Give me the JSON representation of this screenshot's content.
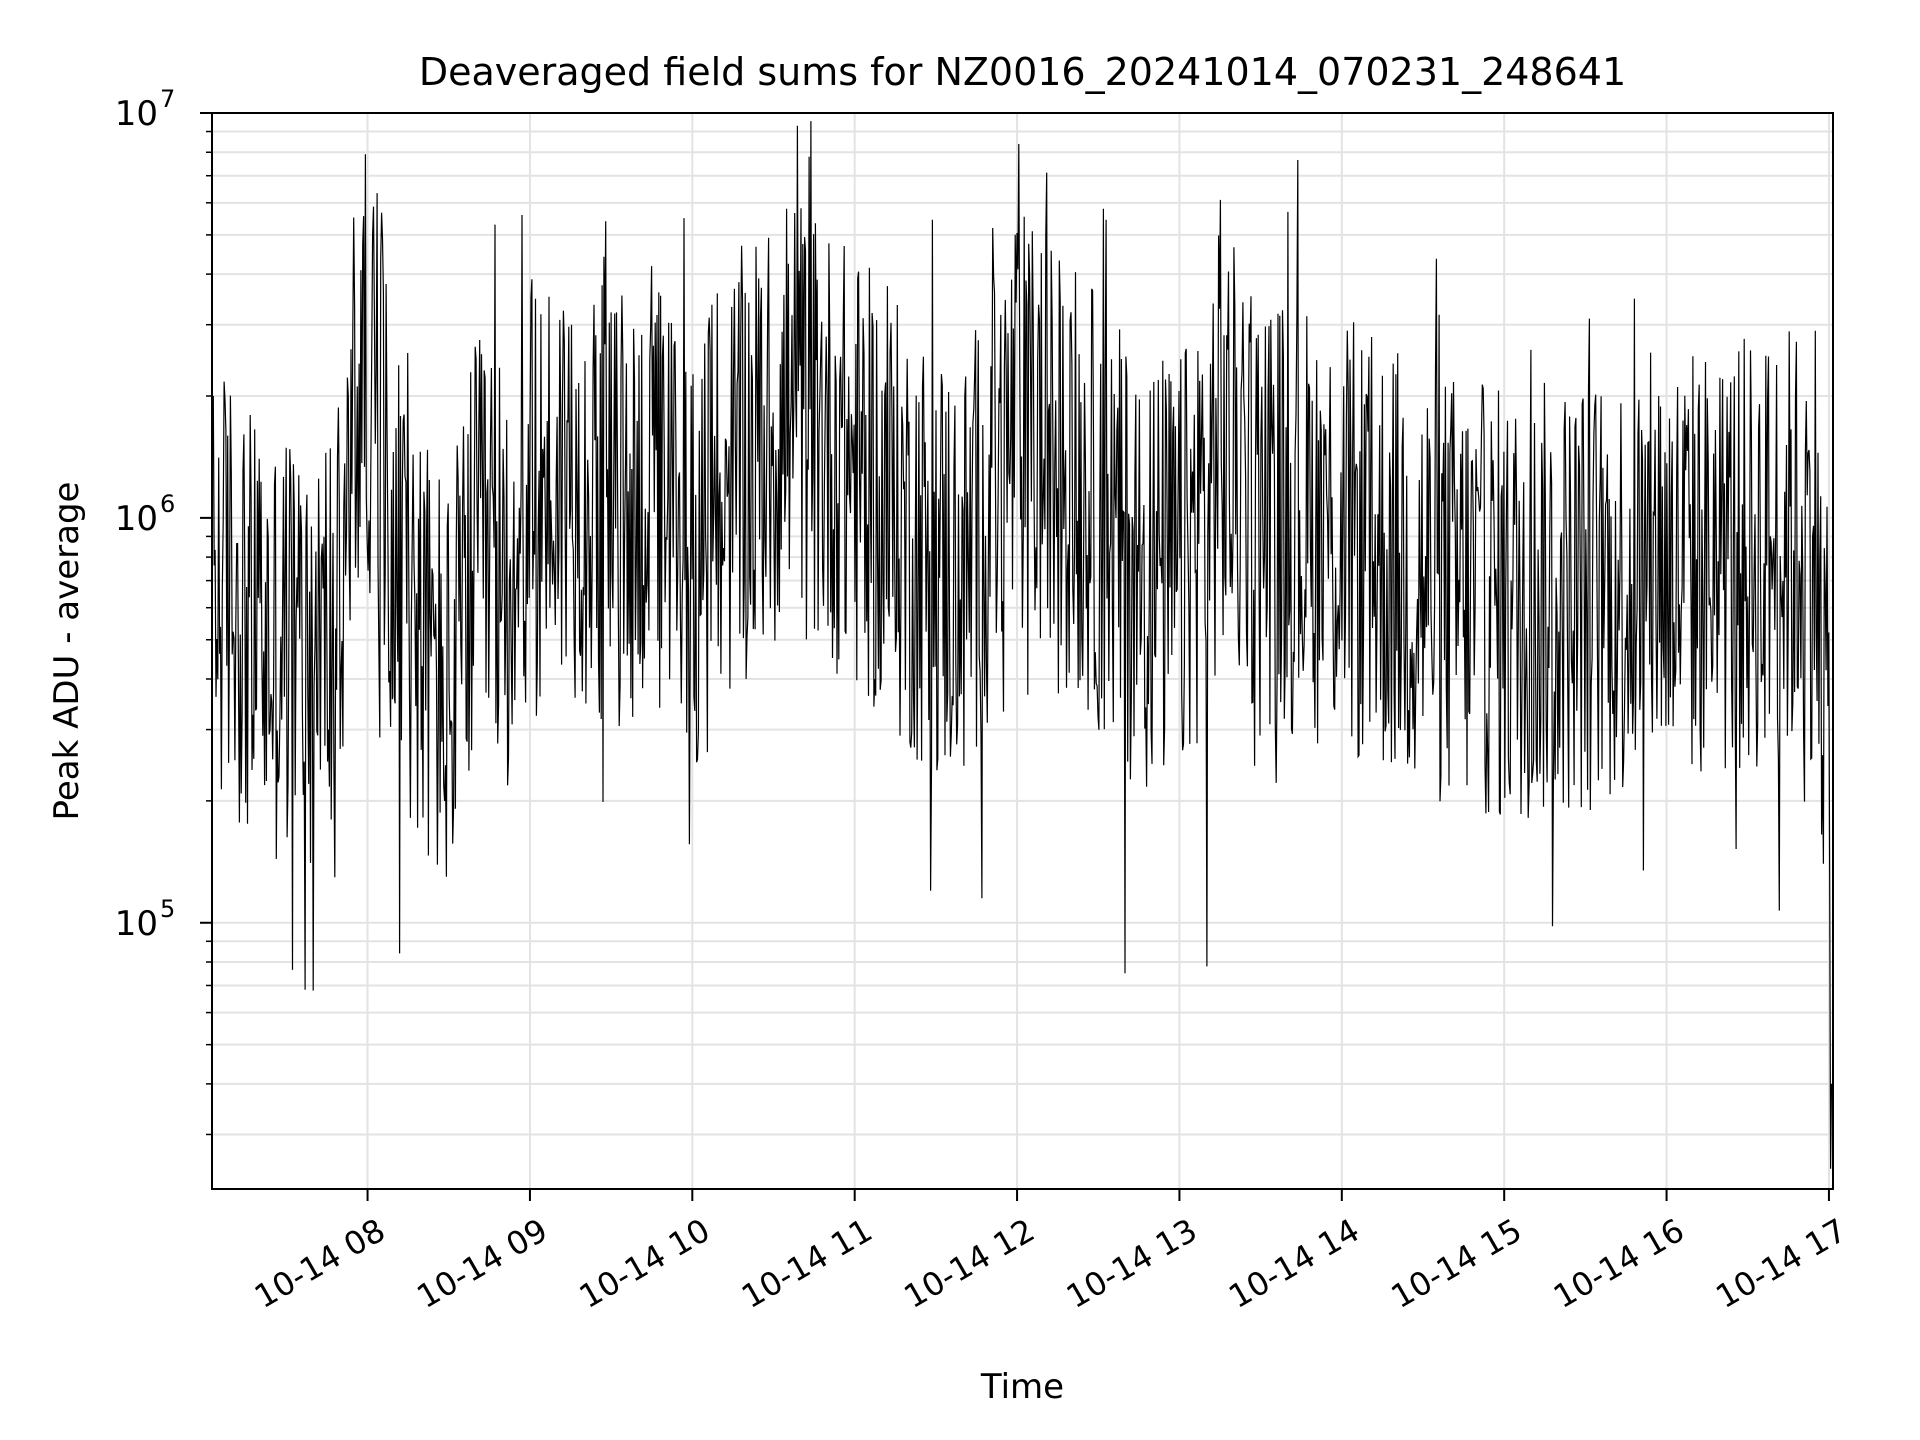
{
  "chart_data": {
    "type": "line",
    "title": "Deaveraged field sums for NZ0016_20241014_070231_248641",
    "xlabel": "Time",
    "ylabel": "Peak ADU - average",
    "xlim": [
      "2024-10-14T07:02:31",
      "2024-10-14T17:01:30"
    ],
    "ylim": [
      22000,
      10000000
    ],
    "yscale": "log",
    "grid": true,
    "x_ticks": [
      {
        "t": "2024-10-14T08:00",
        "label": "10-14 08"
      },
      {
        "t": "2024-10-14T09:00",
        "label": "10-14 09"
      },
      {
        "t": "2024-10-14T10:00",
        "label": "10-14 10"
      },
      {
        "t": "2024-10-14T11:00",
        "label": "10-14 11"
      },
      {
        "t": "2024-10-14T12:00",
        "label": "10-14 12"
      },
      {
        "t": "2024-10-14T13:00",
        "label": "10-14 13"
      },
      {
        "t": "2024-10-14T14:00",
        "label": "10-14 14"
      },
      {
        "t": "2024-10-14T15:00",
        "label": "10-14 15"
      },
      {
        "t": "2024-10-14T16:00",
        "label": "10-14 16"
      },
      {
        "t": "2024-10-14T17:00",
        "label": "10-14 17"
      }
    ],
    "y_ticks": [
      {
        "value": 100000,
        "base": "10",
        "exp": "5"
      },
      {
        "value": 1000000,
        "base": "10",
        "exp": "6"
      },
      {
        "value": 10000000,
        "base": "10",
        "exp": "7"
      }
    ],
    "series_color": "#000000",
    "series": [
      {
        "x": [
          "2024-10-14T07:03",
          "2024-10-14T07:10",
          "2024-10-14T07:20",
          "2024-10-14T07:30",
          "2024-10-14T07:40",
          "2024-10-14T07:50",
          "2024-10-14T07:55",
          "2024-10-14T08:00",
          "2024-10-14T08:10",
          "2024-10-14T08:20",
          "2024-10-14T08:30",
          "2024-10-14T08:40",
          "2024-10-14T08:50",
          "2024-10-14T09:00",
          "2024-10-14T09:15",
          "2024-10-14T09:30",
          "2024-10-14T09:45",
          "2024-10-14T10:00",
          "2024-10-14T10:20",
          "2024-10-14T10:40",
          "2024-10-14T11:00",
          "2024-10-14T11:20",
          "2024-10-14T11:40",
          "2024-10-14T12:00",
          "2024-10-14T12:20",
          "2024-10-14T12:40",
          "2024-10-14T13:00",
          "2024-10-14T13:15",
          "2024-10-14T13:30",
          "2024-10-14T14:00",
          "2024-10-14T14:30",
          "2024-10-14T15:00",
          "2024-10-14T15:30",
          "2024-10-14T16:00",
          "2024-10-14T16:30",
          "2024-10-14T16:55",
          "2024-10-14T17:00",
          "2024-10-14T17:01"
        ],
        "y": [
          650000,
          700000,
          450000,
          500000,
          480000,
          550000,
          1800000,
          2500000,
          900000,
          500000,
          350000,
          800000,
          700000,
          1100000,
          1300000,
          1000000,
          1200000,
          800000,
          1400000,
          1800000,
          1300000,
          900000,
          700000,
          1700000,
          1300000,
          800000,
          700000,
          1500000,
          1100000,
          900000,
          700000,
          600000,
          650000,
          750000,
          800000,
          900000,
          250000,
          40000
        ],
        "peaks_high": [
          {
            "x": "2024-10-14T07:20",
            "y": 1400000
          },
          {
            "x": "2024-10-14T08:02",
            "y": 5000000
          },
          {
            "x": "2024-10-14T08:47",
            "y": 5300000
          },
          {
            "x": "2024-10-14T08:57",
            "y": 5600000
          },
          {
            "x": "2024-10-14T09:28",
            "y": 5400000
          },
          {
            "x": "2024-10-14T09:57",
            "y": 5500000
          },
          {
            "x": "2024-10-14T10:35",
            "y": 5800000
          },
          {
            "x": "2024-10-14T10:43",
            "y": 7800000
          },
          {
            "x": "2024-10-14T11:51",
            "y": 5200000
          },
          {
            "x": "2024-10-14T12:32",
            "y": 5800000
          },
          {
            "x": "2024-10-14T13:15",
            "y": 6100000
          },
          {
            "x": "2024-10-14T14:10",
            "y": 2500000
          },
          {
            "x": "2024-10-14T15:10",
            "y": 2600000
          },
          {
            "x": "2024-10-14T15:57",
            "y": 2000000
          },
          {
            "x": "2024-10-14T16:55",
            "y": 2900000
          }
        ],
        "peaks_low": [
          {
            "x": "2024-10-14T07:40",
            "y": 68000
          },
          {
            "x": "2024-10-14T08:12",
            "y": 84000
          },
          {
            "x": "2024-10-14T11:28",
            "y": 120000
          },
          {
            "x": "2024-10-14T12:40",
            "y": 75000
          },
          {
            "x": "2024-10-14T13:10",
            "y": 78000
          },
          {
            "x": "2024-10-14T15:18",
            "y": 98000
          },
          {
            "x": "2024-10-14T17:01",
            "y": 40000
          }
        ]
      }
    ]
  }
}
